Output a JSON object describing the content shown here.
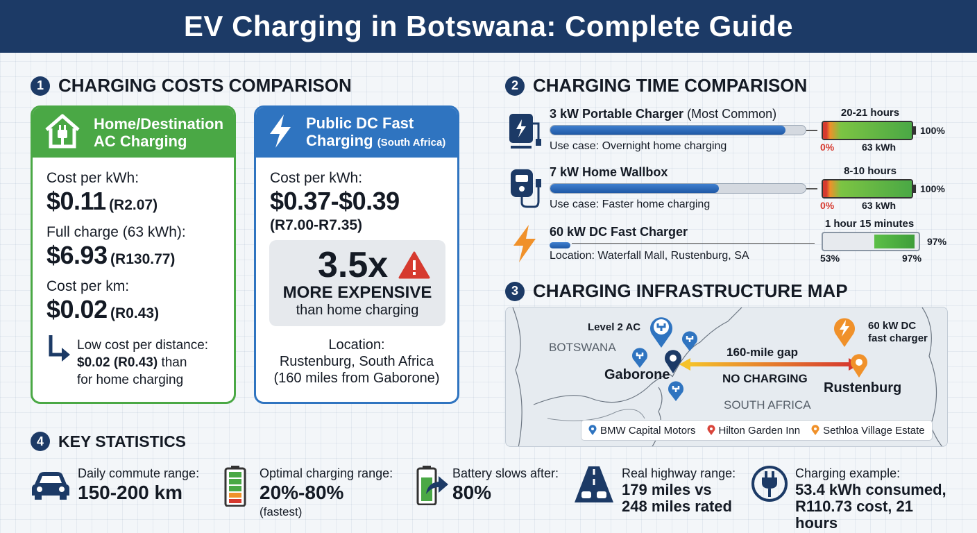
{
  "title": "EV Charging in Botswana: Complete Guide",
  "sections": {
    "costs": {
      "num": "1",
      "title": "CHARGING COSTS COMPARISON"
    },
    "time": {
      "num": "2",
      "title": "CHARGING TIME COMPARISON"
    },
    "map": {
      "num": "3",
      "title": "CHARGING INFRASTRUCTURE MAP"
    },
    "stats": {
      "num": "4",
      "title": "KEY STATISTICS"
    }
  },
  "home_card": {
    "title_line1": "Home/Destination",
    "title_line2": "AC Charging",
    "cost_kwh_label": "Cost per kWh:",
    "cost_kwh_value": "$0.11",
    "cost_kwh_local": "(R2.07)",
    "full_label": "Full charge (63 kWh):",
    "full_value": "$6.93",
    "full_local": "(R130.77)",
    "km_label": "Cost per km:",
    "km_value": "$0.02",
    "km_local": "(R0.43)",
    "note_line1": "Low cost per distance:",
    "note_line2": "$0.02 (R0.43)",
    "note_line2_rest": " than",
    "note_line3": "for home charging",
    "accent": "#4aa845"
  },
  "dc_card": {
    "title_line1": "Public DC Fast",
    "title_line2": "Charging",
    "title_suffix": "(South Africa)",
    "cost_kwh_label": "Cost per kWh:",
    "cost_kwh_value": "$0.37-$0.39",
    "cost_kwh_local": "(R7.00-R7.35)",
    "multiplier": "3.5x",
    "more_expensive": "MORE EXPENSIVE",
    "than_home": "than home charging",
    "location_label": "Location:",
    "location_line1": "Rustenburg, South Africa",
    "location_line2": "(160 miles from Gaborone)",
    "accent": "#2f74c0"
  },
  "time_rows": [
    {
      "name": "3 kW Portable Charger",
      "name_suffix": "(Most Common)",
      "use": "Use case: Overnight home charging",
      "duration": "20-21 hours",
      "start": "0%",
      "capacity": "63 kWh",
      "end": "100%",
      "bar_fill_percent": 92,
      "batt_fill_percent": 100
    },
    {
      "name": "7 kW Home Wallbox",
      "name_suffix": "",
      "use": "Use case: Faster home charging",
      "duration": "8-10 hours",
      "start": "0%",
      "capacity": "63 kWh",
      "end": "100%",
      "bar_fill_percent": 66,
      "batt_fill_percent": 100
    },
    {
      "name": "60 kW DC Fast Charger",
      "name_suffix": "",
      "use": "Location: Waterfall Mall, Rustenburg, SA",
      "duration": "1 hour 15 minutes",
      "start": "53%",
      "capacity": "",
      "end": "97%",
      "end_right": "97%",
      "bar_fill_percent": 9,
      "batt_fill_percent": 97
    }
  ],
  "map": {
    "country_botswana": "BOTSWANA",
    "country_sa": "SOUTH AFRICA",
    "level2_label": "Level 2 AC",
    "gaborone": "Gaborone",
    "dc_label_line1": "60 kW DC",
    "dc_label_line2": "fast charger",
    "rustenburg": "Rustenburg",
    "gap": "160-mile gap",
    "no_charging": "NO CHARGING",
    "legend": [
      {
        "label": "BMW Capital Motors",
        "color": "#2f74c0"
      },
      {
        "label": "Hilton Garden Inn",
        "color": "#d9453b"
      },
      {
        "label": "Sethloa Village Estate",
        "color": "#f0912a"
      }
    ]
  },
  "stats": [
    {
      "label": "Daily commute range:",
      "value": "150-200 km",
      "icon": "car-icon"
    },
    {
      "label": "Optimal charging range:",
      "value": "20%-80%",
      "sub": "(fastest)",
      "icon": "battery-gauge-icon"
    },
    {
      "label": "Battery slows after:",
      "value": "80%",
      "icon": "battery-arrow-icon"
    },
    {
      "label": "Real highway range:",
      "value_line1": "179 miles vs",
      "value_line2": "248 miles rated",
      "icon": "highway-icon"
    },
    {
      "label": "Charging example:",
      "value_line1": "53.4 kWh consumed,",
      "value_line2": "R110.73 cost, 21 hours",
      "icon": "plug-icon"
    }
  ]
}
